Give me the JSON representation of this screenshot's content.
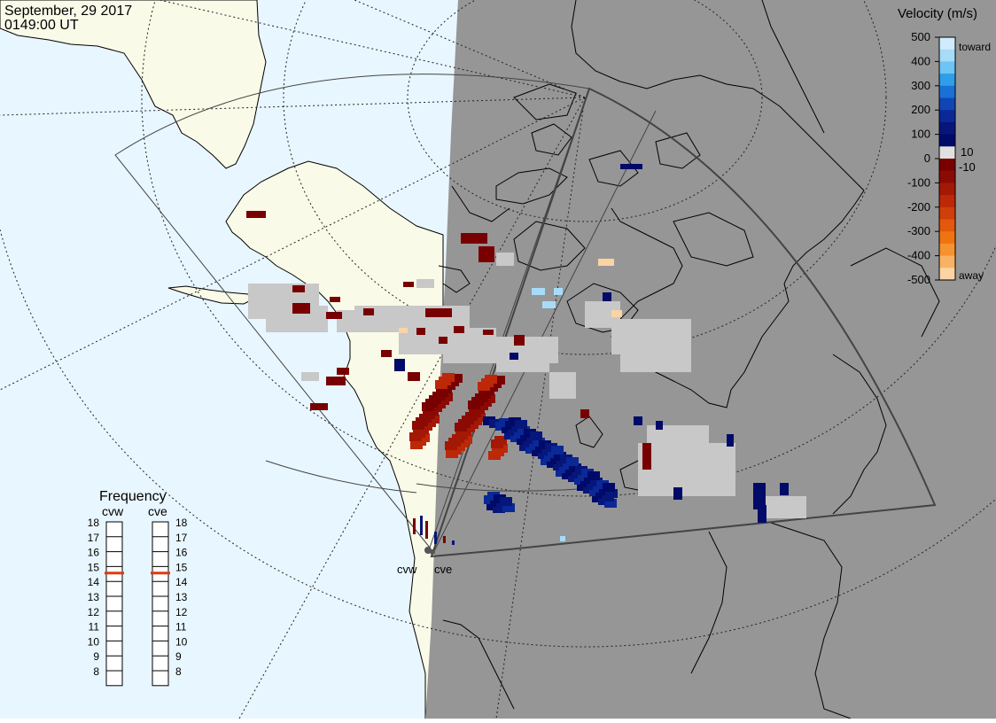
{
  "header": {
    "date": "September, 29 2017",
    "time": "0149:00 UT"
  },
  "velocity_legend": {
    "title": "Velocity (m/s)",
    "ticks": [
      "500",
      "400",
      "300",
      "200",
      "100",
      "0",
      "-100",
      "-200",
      "-300",
      "-400",
      "-500"
    ],
    "inner_labels": [
      "10",
      "-10"
    ],
    "toward_label": "toward",
    "away_label": "away",
    "colors": [
      "#d0ecfc",
      "#a6dcf8",
      "#6ec4f4",
      "#2e9ee8",
      "#1a70d4",
      "#1046b4",
      "#0a2896",
      "#06167a",
      "#000a68",
      "#e0e0e0",
      "#780000",
      "#8c0a04",
      "#a41806",
      "#bc2808",
      "#d03e0a",
      "#e2580c",
      "#ef7410",
      "#f79230",
      "#f9b264",
      "#fbd4a4"
    ]
  },
  "frequency": {
    "title": "Frequency",
    "radars": [
      "cvw",
      "cve"
    ],
    "scale": [
      "18",
      "17",
      "16",
      "15",
      "14",
      "13",
      "12",
      "11",
      "10",
      "9",
      "8"
    ],
    "selected_mhz": [
      15,
      15
    ],
    "marker_color": "#e03a10"
  },
  "radar_sites": {
    "west_label": "cvw",
    "east_label": "cve"
  },
  "map_colors": {
    "ocean_day": "#e8f6ff",
    "land_day": "#fafae8",
    "night_side": "#969696",
    "ground_scatter": "#c8c8c8"
  }
}
